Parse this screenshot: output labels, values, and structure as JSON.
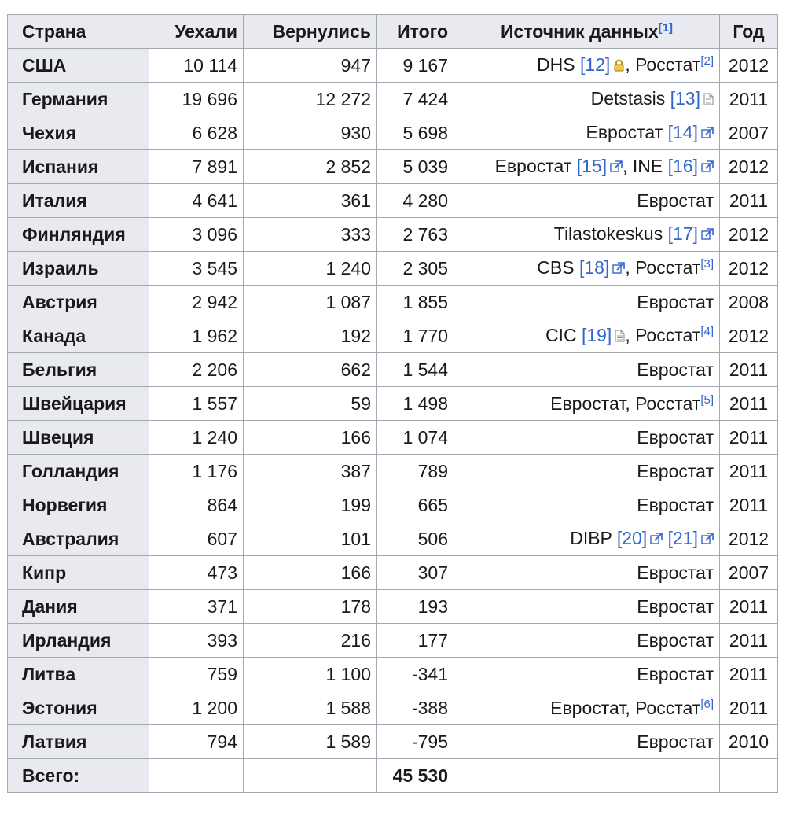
{
  "headers": {
    "country": "Страна",
    "left": "Уехали",
    "returned": "Вернулись",
    "total": "Итого",
    "source": "Источник данных",
    "source_ref": "[1]",
    "year": "Год"
  },
  "rows": [
    {
      "country": "США",
      "left": "10 114",
      "returned": "947",
      "total": "9 167",
      "year": "2012",
      "source": [
        {
          "t": "DHS "
        },
        {
          "ref": "[12]"
        },
        {
          "icon": "lock"
        },
        {
          "t": ", Росстат"
        },
        {
          "sup": "[2]"
        }
      ]
    },
    {
      "country": "Германия",
      "left": "19 696",
      "returned": "12 272",
      "total": "7 424",
      "year": "2011",
      "source": [
        {
          "t": "Detstasis "
        },
        {
          "ref": "[13]"
        },
        {
          "icon": "doc"
        }
      ]
    },
    {
      "country": "Чехия",
      "left": "6 628",
      "returned": "930",
      "total": "5 698",
      "year": "2007",
      "source": [
        {
          "t": "Евростат "
        },
        {
          "ref": "[14]"
        },
        {
          "icon": "ext"
        }
      ]
    },
    {
      "country": "Испания",
      "left": "7 891",
      "returned": "2 852",
      "total": "5 039",
      "year": "2012",
      "source": [
        {
          "t": "Евростат "
        },
        {
          "ref": "[15]"
        },
        {
          "icon": "ext"
        },
        {
          "t": ", INE "
        },
        {
          "ref": "[16]"
        },
        {
          "icon": "ext"
        }
      ]
    },
    {
      "country": "Италия",
      "left": "4 641",
      "returned": "361",
      "total": "4 280",
      "year": "2011",
      "source": [
        {
          "t": "Евростат"
        }
      ]
    },
    {
      "country": "Финляндия",
      "left": "3 096",
      "returned": "333",
      "total": "2 763",
      "year": "2012",
      "source": [
        {
          "t": "Tilastokeskus "
        },
        {
          "ref": "[17]"
        },
        {
          "icon": "ext"
        }
      ]
    },
    {
      "country": "Израиль",
      "left": "3 545",
      "returned": "1 240",
      "total": "2 305",
      "year": "2012",
      "source": [
        {
          "t": "CBS "
        },
        {
          "ref": "[18]"
        },
        {
          "icon": "ext"
        },
        {
          "t": ", Росстат"
        },
        {
          "sup": "[3]"
        }
      ]
    },
    {
      "country": "Австрия",
      "left": "2 942",
      "returned": "1 087",
      "total": "1 855",
      "year": "2008",
      "source": [
        {
          "t": "Евростат"
        }
      ]
    },
    {
      "country": "Канада",
      "left": "1 962",
      "returned": "192",
      "total": "1 770",
      "year": "2012",
      "source": [
        {
          "t": "CIC "
        },
        {
          "ref": "[19]"
        },
        {
          "icon": "doc"
        },
        {
          "t": ", Росстат"
        },
        {
          "sup": "[4]"
        }
      ]
    },
    {
      "country": "Бельгия",
      "left": "2 206",
      "returned": "662",
      "total": "1 544",
      "year": "2011",
      "source": [
        {
          "t": "Евростат"
        }
      ]
    },
    {
      "country": "Швейцария",
      "left": "1 557",
      "returned": "59",
      "total": "1 498",
      "year": "2011",
      "source": [
        {
          "t": "Евростат, Росстат"
        },
        {
          "sup": "[5]"
        }
      ]
    },
    {
      "country": "Швеция",
      "left": "1 240",
      "returned": "166",
      "total": "1 074",
      "year": "2011",
      "source": [
        {
          "t": "Евростат"
        }
      ]
    },
    {
      "country": "Голландия",
      "left": "1 176",
      "returned": "387",
      "total": "789",
      "year": "2011",
      "source": [
        {
          "t": "Евростат"
        }
      ]
    },
    {
      "country": "Норвегия",
      "left": "864",
      "returned": "199",
      "total": "665",
      "year": "2011",
      "source": [
        {
          "t": "Евростат"
        }
      ]
    },
    {
      "country": "Австралия",
      "left": "607",
      "returned": "101",
      "total": "506",
      "year": "2012",
      "source": [
        {
          "t": "DIBP "
        },
        {
          "ref": "[20]"
        },
        {
          "icon": "ext"
        },
        {
          "t": " "
        },
        {
          "ref": "[21]"
        },
        {
          "icon": "ext"
        }
      ]
    },
    {
      "country": "Кипр",
      "left": "473",
      "returned": "166",
      "total": "307",
      "year": "2007",
      "source": [
        {
          "t": "Евростат"
        }
      ]
    },
    {
      "country": "Дания",
      "left": "371",
      "returned": "178",
      "total": "193",
      "year": "2011",
      "source": [
        {
          "t": "Евростат"
        }
      ]
    },
    {
      "country": "Ирландия",
      "left": "393",
      "returned": "216",
      "total": "177",
      "year": "2011",
      "source": [
        {
          "t": "Евростат"
        }
      ]
    },
    {
      "country": "Литва",
      "left": "759",
      "returned": "1 100",
      "total": "-341",
      "year": "2011",
      "source": [
        {
          "t": "Евростат"
        }
      ]
    },
    {
      "country": "Эстония",
      "left": "1 200",
      "returned": "1 588",
      "total": "-388",
      "year": "2011",
      "source": [
        {
          "t": "Евростат, Росстат"
        },
        {
          "sup": "[6]"
        }
      ]
    },
    {
      "country": "Латвия",
      "left": "794",
      "returned": "1 589",
      "total": "-795",
      "year": "2010",
      "source": [
        {
          "t": "Евростат"
        }
      ]
    }
  ],
  "footer": {
    "label": "Всего:",
    "total": "45 530"
  }
}
